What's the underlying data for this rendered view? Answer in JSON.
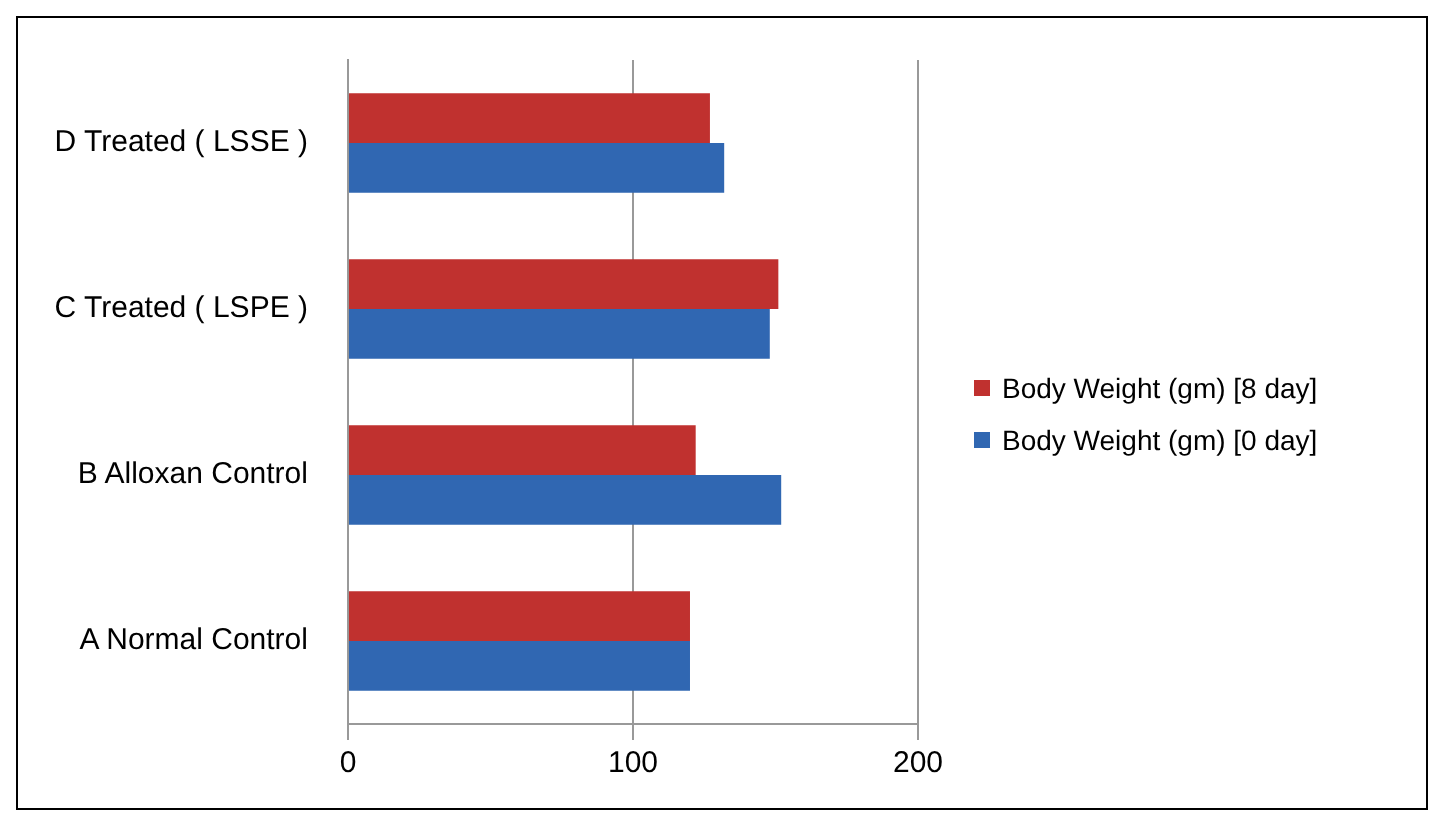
{
  "chart_data": {
    "type": "bar",
    "orientation": "horizontal",
    "categories": [
      "D Treated ( LSSE )",
      "C Treated ( LSPE )",
      "B Alloxan Control",
      "A Normal Control"
    ],
    "series": [
      {
        "name": "Body Weight (gm) [8 day]",
        "color": "#c0312f",
        "values": [
          127,
          151,
          122,
          120
        ]
      },
      {
        "name": "Body Weight (gm) [0 day]",
        "color": "#3067b2",
        "values": [
          132,
          148,
          152,
          120
        ]
      }
    ],
    "xlim": [
      0,
      200
    ],
    "xticks": [
      0,
      100,
      200
    ],
    "grid": "x",
    "legend": "right"
  }
}
